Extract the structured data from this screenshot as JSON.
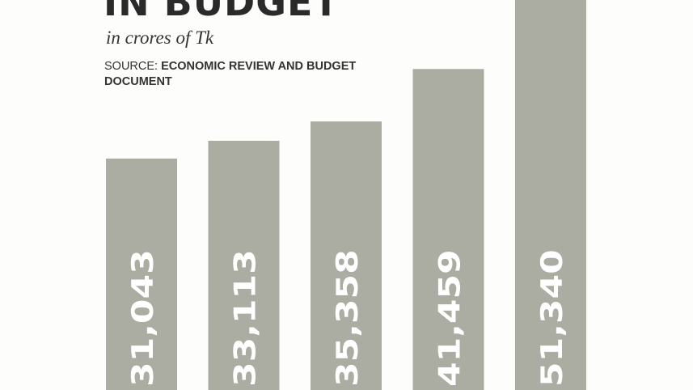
{
  "chart_data": {
    "type": "bar",
    "title": "IN BUDGET",
    "subtitle": "in crores of Tk",
    "source_label": "SOURCE:",
    "source_text": "ECONOMIC REVIEW AND BUDGET DOCUMENT",
    "values": [
      31043,
      33113,
      35358,
      41459,
      51340
    ],
    "labels": [
      "31,043",
      "33,113",
      "35,358",
      "41,459",
      "51,340"
    ],
    "bar_color": "#abada2",
    "label_color": "#ffffff",
    "grid": false,
    "orientation": "vertical"
  }
}
